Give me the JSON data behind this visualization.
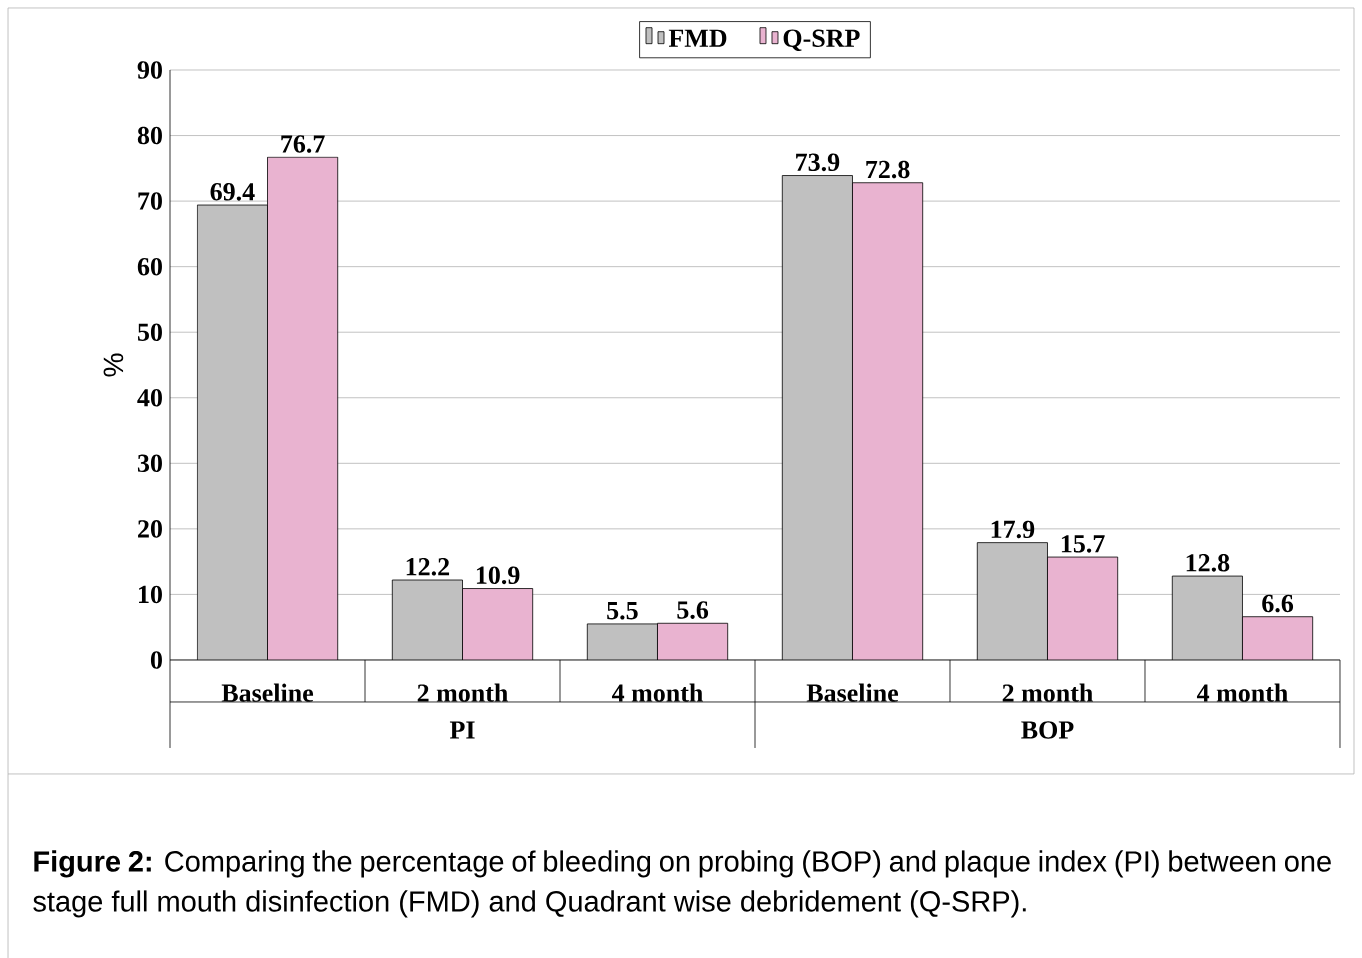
{
  "chart_data": {
    "type": "bar",
    "categories": [
      "Baseline",
      "2 month",
      "4 month",
      "Baseline",
      "2 month",
      "4 month"
    ],
    "series": [
      {
        "name": "FMD",
        "color": "#c0c0c0",
        "values": [
          69.4,
          12.2,
          5.5,
          73.9,
          17.9,
          12.8
        ]
      },
      {
        "name": "Q-SRP",
        "color": "#e9b3d0",
        "values": [
          76.7,
          10.9,
          5.6,
          72.8,
          15.7,
          6.6
        ]
      }
    ],
    "ylabel": "%",
    "ylim": [
      0,
      90
    ],
    "yticks": [
      0,
      10,
      20,
      30,
      40,
      50,
      60,
      70,
      80,
      90
    ],
    "grid": "y",
    "legend": "top",
    "data_labels": true,
    "annotations": [
      "PI",
      "BOP",
      "**Figure 2:** Comparing the percentage of bleeding on probing (BOP) and plaque index (PI) between one stage full mouth disinfection (FMD) and Quadrant wise debridement (Q-SRP)."
    ]
  }
}
